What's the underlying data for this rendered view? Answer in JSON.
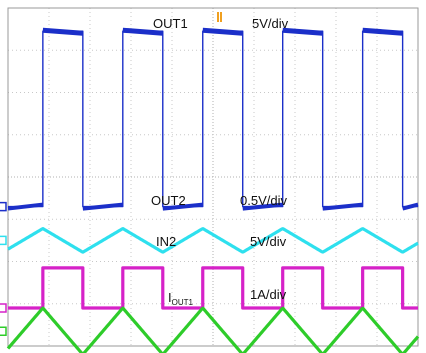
{
  "chart_data": {
    "type": "line",
    "grid": true,
    "x_divisions": 10,
    "y_divisions": 8,
    "trigger_marker_color": "#f0a020",
    "series": [
      {
        "name": "OUT1",
        "scale_label": "5V/div",
        "color": "#1b2fc9",
        "shape": "square",
        "period_div": 1.95,
        "duty": 0.5,
        "phase_div": 0.85,
        "level_high_div": -3.45,
        "level_low_div": 0.7
      },
      {
        "name": "OUT2",
        "scale_label": "0.5V/div",
        "color": "#2ee0ee",
        "shape": "triangle",
        "period_div": 1.95,
        "phase_div": 0.85,
        "center_div": 1.5,
        "amplitude_div": 0.28
      },
      {
        "name": "IN2",
        "scale_label": "5V/div",
        "color": "#d622c8",
        "shape": "square",
        "period_div": 1.95,
        "duty": 0.5,
        "phase_div": 0.85,
        "level_high_div": 2.15,
        "level_low_div": 3.1
      },
      {
        "name": "I",
        "name_sub": "OUT1",
        "scale_label": "1A/div",
        "color": "#2ecc2a",
        "shape": "triangle",
        "period_div": 1.95,
        "phase_div": 0.85,
        "center_div": 3.65,
        "amplitude_div": 0.55
      }
    ]
  }
}
